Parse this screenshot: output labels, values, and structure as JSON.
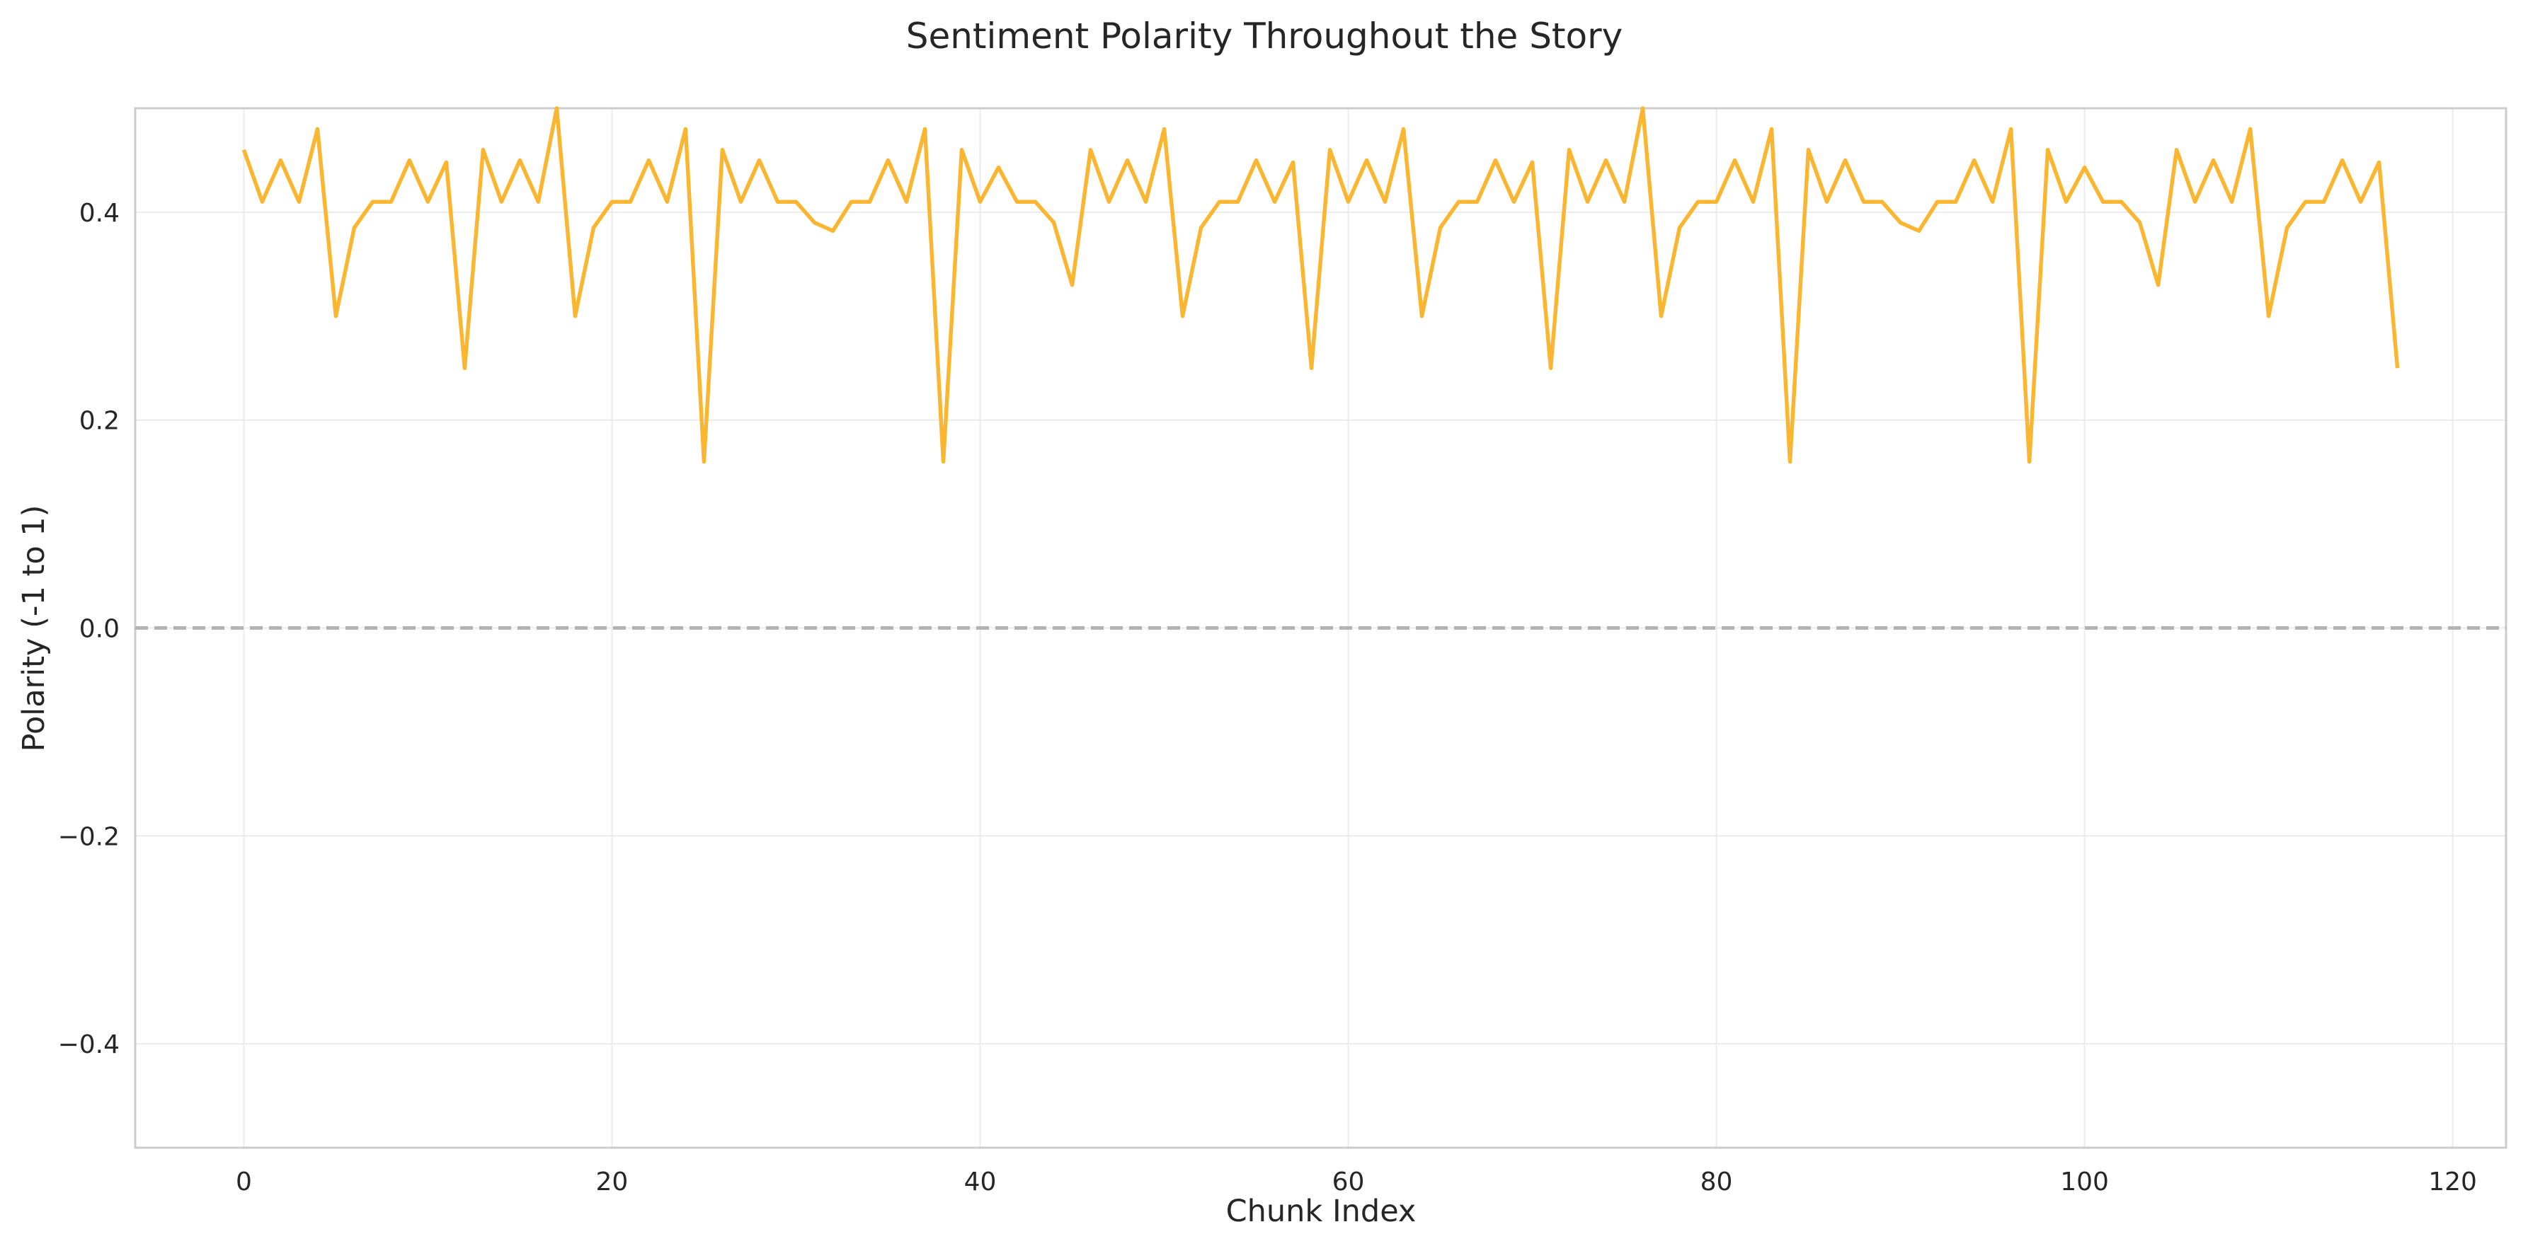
{
  "chart_data": {
    "type": "line",
    "title": "Sentiment Polarity Throughout the Story",
    "xlabel": "Chunk Index",
    "ylabel": "Polarity (-1 to 1)",
    "xlim": [
      -5.9,
      122.9
    ],
    "ylim": [
      -0.5,
      0.5
    ],
    "xticks": [
      0,
      20,
      40,
      60,
      80,
      100,
      120
    ],
    "yticks": [
      -0.4,
      -0.2,
      0.0,
      0.2,
      0.4
    ],
    "ytick_labels": [
      "−0.4",
      "−0.2",
      "0.0",
      "0.2",
      "0.4"
    ],
    "xtick_labels": [
      "0",
      "20",
      "40",
      "60",
      "80",
      "100",
      "120"
    ],
    "grid": true,
    "line_color": "#fbb631",
    "reference_line": {
      "y": 0,
      "style": "dashed",
      "color": "#b3b3b3"
    },
    "series": [
      {
        "x": [
          0,
          1,
          2,
          3,
          4,
          5,
          6,
          7,
          8,
          9,
          10,
          11,
          12,
          13,
          14,
          15,
          16,
          17,
          18,
          19,
          20,
          21,
          22,
          23,
          24,
          25,
          26,
          27,
          28,
          29,
          30,
          31,
          32,
          33,
          34,
          35,
          36,
          37,
          38,
          39,
          40,
          41,
          42,
          43,
          44,
          45,
          46,
          47,
          48,
          49,
          50,
          51,
          52,
          53,
          54,
          55,
          56,
          57,
          58,
          59,
          60,
          61,
          62,
          63,
          64,
          65,
          66,
          67,
          68,
          69,
          70,
          71,
          72,
          73,
          74,
          75,
          76,
          77,
          78,
          79,
          80,
          81,
          82,
          83,
          84,
          85,
          86,
          87,
          88,
          89,
          90,
          91,
          92,
          93,
          94,
          95,
          96,
          97,
          98,
          99,
          100,
          101,
          102,
          103,
          104,
          105,
          106,
          107,
          108,
          109,
          110,
          111,
          112,
          113,
          114,
          115,
          116,
          117
        ],
        "values": [
          0.46,
          0.41,
          0.45,
          0.41,
          0.48,
          0.3,
          0.385,
          0.41,
          0.41,
          0.45,
          0.41,
          0.448,
          0.25,
          0.46,
          0.41,
          0.45,
          0.41,
          0.5,
          0.3,
          0.385,
          0.41,
          0.41,
          0.45,
          0.41,
          0.48,
          0.16,
          0.46,
          0.41,
          0.45,
          0.41,
          0.41,
          0.39,
          0.382,
          0.41,
          0.41,
          0.45,
          0.41,
          0.48,
          0.16,
          0.46,
          0.41,
          0.443,
          0.41,
          0.41,
          0.39,
          0.33,
          0.46,
          0.41,
          0.45,
          0.41,
          0.48,
          0.3,
          0.385,
          0.41,
          0.41,
          0.45,
          0.41,
          0.448,
          0.25,
          0.46,
          0.41,
          0.45,
          0.41,
          0.48,
          0.3,
          0.385,
          0.41,
          0.41,
          0.45,
          0.41,
          0.448,
          0.25,
          0.46,
          0.41,
          0.45,
          0.41,
          0.5,
          0.3,
          0.385,
          0.41,
          0.41,
          0.45,
          0.41,
          0.48,
          0.16,
          0.46,
          0.41,
          0.45,
          0.41,
          0.41,
          0.39,
          0.382,
          0.41,
          0.41,
          0.45,
          0.41,
          0.48,
          0.16,
          0.46,
          0.41,
          0.443,
          0.41,
          0.41,
          0.39,
          0.33,
          0.46,
          0.41,
          0.45,
          0.41,
          0.48,
          0.3,
          0.385,
          0.41,
          0.41,
          0.45,
          0.41,
          0.448,
          0.25
        ]
      }
    ]
  }
}
